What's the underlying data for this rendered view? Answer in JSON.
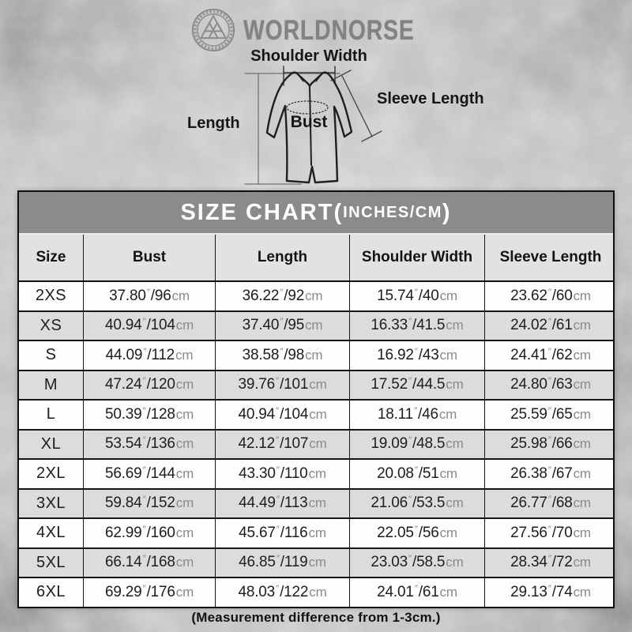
{
  "brand": {
    "name": "WORLDNORSE"
  },
  "diagram_labels": {
    "shoulder_width": "Shoulder Width",
    "sleeve_length": "Sleeve Length",
    "length": "Length",
    "bust": "Bust"
  },
  "table_title": {
    "prefix": "SIZE CHART(",
    "inner": "INCHES/CM",
    "suffix": ")"
  },
  "chart_data": {
    "type": "table",
    "title": "SIZE CHART(INCHES/CM)",
    "columns": [
      "Size",
      "Bust",
      "Length",
      "Shoulder Width",
      "Sleeve Length"
    ],
    "units": {
      "inch_mark": "″",
      "cm_label": "cm",
      "separator": "/"
    },
    "rows": [
      {
        "size": "2XS",
        "values": [
          [
            "37.80",
            "96"
          ],
          [
            "36.22",
            "92"
          ],
          [
            "15.74",
            "40"
          ],
          [
            "23.62",
            "60"
          ]
        ]
      },
      {
        "size": "XS",
        "values": [
          [
            "40.94",
            "104"
          ],
          [
            "37.40",
            "95"
          ],
          [
            "16.33",
            "41.5"
          ],
          [
            "24.02",
            "61"
          ]
        ]
      },
      {
        "size": "S",
        "values": [
          [
            "44.09",
            "112"
          ],
          [
            "38.58",
            "98"
          ],
          [
            "16.92",
            "43"
          ],
          [
            "24.41",
            "62"
          ]
        ]
      },
      {
        "size": "M",
        "values": [
          [
            "47.24",
            "120"
          ],
          [
            "39.76",
            "101"
          ],
          [
            "17.52",
            "44.5"
          ],
          [
            "24.80",
            "63"
          ]
        ]
      },
      {
        "size": "L",
        "values": [
          [
            "50.39",
            "128"
          ],
          [
            "40.94",
            "104"
          ],
          [
            "18.11",
            "46"
          ],
          [
            "25.59",
            "65"
          ]
        ]
      },
      {
        "size": "XL",
        "values": [
          [
            "53.54",
            "136"
          ],
          [
            "42.12",
            "107"
          ],
          [
            "19.09",
            "48.5"
          ],
          [
            "25.98",
            "66"
          ]
        ]
      },
      {
        "size": "2XL",
        "values": [
          [
            "56.69",
            "144"
          ],
          [
            "43.30",
            "110"
          ],
          [
            "20.08",
            "51"
          ],
          [
            "26.38",
            "67"
          ]
        ]
      },
      {
        "size": "3XL",
        "values": [
          [
            "59.84",
            "152"
          ],
          [
            "44.49",
            "113"
          ],
          [
            "21.06",
            "53.5"
          ],
          [
            "26.77",
            "68"
          ]
        ]
      },
      {
        "size": "4XL",
        "values": [
          [
            "62.99",
            "160"
          ],
          [
            "45.67",
            "116"
          ],
          [
            "22.05",
            "56"
          ],
          [
            "27.56",
            "70"
          ]
        ]
      },
      {
        "size": "5XL",
        "values": [
          [
            "66.14",
            "168"
          ],
          [
            "46.85",
            "119"
          ],
          [
            "23.03",
            "58.5"
          ],
          [
            "28.34",
            "72"
          ]
        ]
      },
      {
        "size": "6XL",
        "values": [
          [
            "69.29",
            "176"
          ],
          [
            "48.03",
            "122"
          ],
          [
            "24.01",
            "61"
          ],
          [
            "29.13",
            "74"
          ]
        ]
      }
    ],
    "footnote": "(Measurement difference from 1-3cm.)"
  },
  "colors": {
    "title_bar_bg": "#8b8b8b",
    "title_text": "#ffffff",
    "header_row_bg": "#e2e2e2",
    "row_bg": "#fdfdfd",
    "row_alt_bg": "#dcdcdc",
    "border": "#101010",
    "unit_text": "#8a8a8a",
    "ink": "#1d1d1d",
    "brand_text": "#828282",
    "background": "#bcbcbc"
  }
}
